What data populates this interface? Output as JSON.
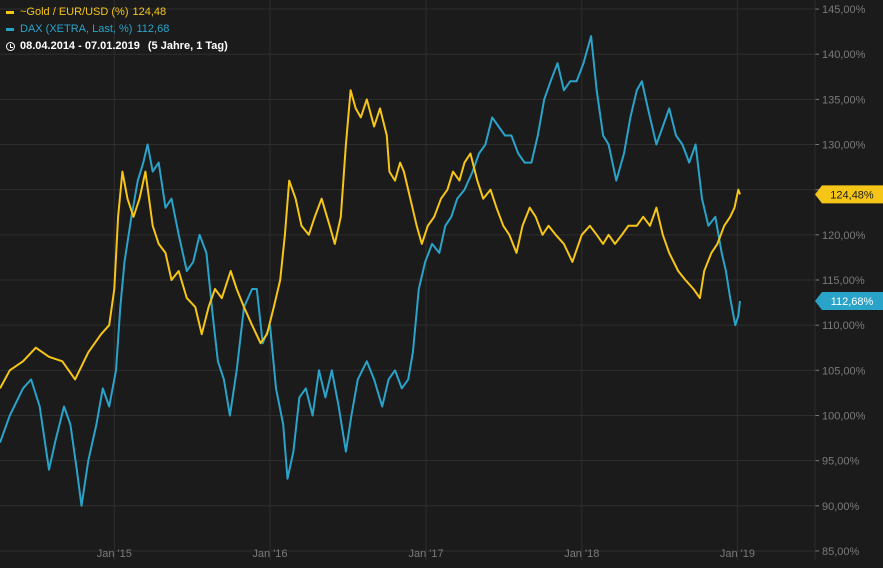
{
  "legend": {
    "gold_label": "~Gold / EUR/USD (%)",
    "gold_value": "124,48",
    "dax_label": "DAX (XETRA, Last, %)",
    "dax_value": "112,68",
    "date_range": "08.04.2014 - 07.01.2019",
    "period": "(5 Jahre, 1 Tag)"
  },
  "colors": {
    "background": "#1b1b1b",
    "grid": "#2e2e2e",
    "axis_text": "#7a7a7a",
    "gold": "#f5c518",
    "dax": "#2aa3c9"
  },
  "chart_data": {
    "type": "line",
    "x_range": [
      "2014-04-08",
      "2019-01-07"
    ],
    "ylim": [
      84,
      146
    ],
    "y_ticks": [
      85,
      90,
      95,
      100,
      105,
      110,
      115,
      120,
      125,
      130,
      135,
      140,
      145
    ],
    "y_tick_labels": [
      "85,00%",
      "90,00%",
      "95,00%",
      "100,00%",
      "105,00%",
      "110,00%",
      "115,00%",
      "120,00%",
      "125,00%",
      "130,00%",
      "135,00%",
      "140,00%",
      "145,00%"
    ],
    "x_ticks": [
      "2015-01-01",
      "2016-01-01",
      "2017-01-01",
      "2018-01-01",
      "2019-01-01"
    ],
    "x_tick_labels": [
      "Jan '15",
      "Jan '16",
      "Jan '17",
      "Jan '18",
      "Jan '19"
    ],
    "grid": true,
    "last_value_labels": [
      "124,48%",
      "112,68%"
    ],
    "series": [
      {
        "name": "~Gold / EUR/USD (%)",
        "color": "#f5c518",
        "points": [
          [
            "2014-04-08",
            103
          ],
          [
            "2014-05-01",
            105
          ],
          [
            "2014-06-01",
            106
          ],
          [
            "2014-07-01",
            107.5
          ],
          [
            "2014-08-01",
            106.5
          ],
          [
            "2014-09-01",
            106
          ],
          [
            "2014-10-01",
            104
          ],
          [
            "2014-11-01",
            107
          ],
          [
            "2014-12-01",
            109
          ],
          [
            "2014-12-20",
            110
          ],
          [
            "2015-01-01",
            114
          ],
          [
            "2015-01-10",
            122
          ],
          [
            "2015-01-20",
            127
          ],
          [
            "2015-02-01",
            124
          ],
          [
            "2015-02-15",
            122
          ],
          [
            "2015-03-01",
            124
          ],
          [
            "2015-03-15",
            127
          ],
          [
            "2015-04-01",
            121
          ],
          [
            "2015-04-15",
            119
          ],
          [
            "2015-05-01",
            118
          ],
          [
            "2015-05-15",
            115
          ],
          [
            "2015-06-01",
            116
          ],
          [
            "2015-06-20",
            113
          ],
          [
            "2015-07-10",
            112
          ],
          [
            "2015-07-25",
            109
          ],
          [
            "2015-08-10",
            112
          ],
          [
            "2015-08-25",
            114
          ],
          [
            "2015-09-10",
            113
          ],
          [
            "2015-10-01",
            116
          ],
          [
            "2015-10-15",
            114
          ],
          [
            "2015-11-01",
            112
          ],
          [
            "2015-11-20",
            110
          ],
          [
            "2015-12-10",
            108
          ],
          [
            "2015-12-25",
            109
          ],
          [
            "2016-01-10",
            112
          ],
          [
            "2016-01-25",
            115
          ],
          [
            "2016-02-05",
            120
          ],
          [
            "2016-02-15",
            126
          ],
          [
            "2016-03-01",
            124
          ],
          [
            "2016-03-15",
            121
          ],
          [
            "2016-04-01",
            120
          ],
          [
            "2016-04-15",
            122
          ],
          [
            "2016-05-01",
            124
          ],
          [
            "2016-05-20",
            121
          ],
          [
            "2016-06-01",
            119
          ],
          [
            "2016-06-15",
            122
          ],
          [
            "2016-06-27",
            130
          ],
          [
            "2016-07-08",
            136
          ],
          [
            "2016-07-20",
            134
          ],
          [
            "2016-08-01",
            133
          ],
          [
            "2016-08-15",
            135
          ],
          [
            "2016-09-01",
            132
          ],
          [
            "2016-09-15",
            134
          ],
          [
            "2016-10-01",
            131
          ],
          [
            "2016-10-07",
            127
          ],
          [
            "2016-10-20",
            126
          ],
          [
            "2016-11-01",
            128
          ],
          [
            "2016-11-10",
            127
          ],
          [
            "2016-11-25",
            124
          ],
          [
            "2016-12-10",
            121
          ],
          [
            "2016-12-22",
            119
          ],
          [
            "2017-01-05",
            121
          ],
          [
            "2017-01-20",
            122
          ],
          [
            "2017-02-05",
            124
          ],
          [
            "2017-02-20",
            125
          ],
          [
            "2017-03-05",
            127
          ],
          [
            "2017-03-20",
            126
          ],
          [
            "2017-04-01",
            128
          ],
          [
            "2017-04-15",
            129
          ],
          [
            "2017-05-01",
            126
          ],
          [
            "2017-05-15",
            124
          ],
          [
            "2017-06-01",
            125
          ],
          [
            "2017-06-15",
            123
          ],
          [
            "2017-07-01",
            121
          ],
          [
            "2017-07-15",
            120
          ],
          [
            "2017-08-01",
            118
          ],
          [
            "2017-08-15",
            121
          ],
          [
            "2017-09-01",
            123
          ],
          [
            "2017-09-15",
            122
          ],
          [
            "2017-10-01",
            120
          ],
          [
            "2017-10-15",
            121
          ],
          [
            "2017-11-01",
            120
          ],
          [
            "2017-11-20",
            119
          ],
          [
            "2017-12-10",
            117
          ],
          [
            "2018-01-01",
            120
          ],
          [
            "2018-01-20",
            121
          ],
          [
            "2018-02-05",
            120
          ],
          [
            "2018-02-20",
            119
          ],
          [
            "2018-03-05",
            120
          ],
          [
            "2018-03-20",
            119
          ],
          [
            "2018-04-05",
            120
          ],
          [
            "2018-04-20",
            121
          ],
          [
            "2018-05-10",
            121
          ],
          [
            "2018-05-25",
            122
          ],
          [
            "2018-06-10",
            121
          ],
          [
            "2018-06-25",
            123
          ],
          [
            "2018-07-10",
            120
          ],
          [
            "2018-07-25",
            118
          ],
          [
            "2018-08-15",
            116
          ],
          [
            "2018-09-01",
            115
          ],
          [
            "2018-09-20",
            114
          ],
          [
            "2018-10-05",
            113
          ],
          [
            "2018-10-15",
            116
          ],
          [
            "2018-11-01",
            118
          ],
          [
            "2018-11-15",
            119
          ],
          [
            "2018-12-01",
            121
          ],
          [
            "2018-12-15",
            122
          ],
          [
            "2018-12-25",
            123
          ],
          [
            "2019-01-03",
            125
          ],
          [
            "2019-01-07",
            124.48
          ]
        ]
      },
      {
        "name": "DAX (XETRA, Last, %)",
        "color": "#2aa3c9",
        "points": [
          [
            "2014-04-08",
            97
          ],
          [
            "2014-05-01",
            100
          ],
          [
            "2014-06-01",
            103
          ],
          [
            "2014-06-20",
            104
          ],
          [
            "2014-07-10",
            101
          ],
          [
            "2014-08-01",
            94
          ],
          [
            "2014-08-15",
            97
          ],
          [
            "2014-09-05",
            101
          ],
          [
            "2014-09-20",
            99
          ],
          [
            "2014-10-05",
            94
          ],
          [
            "2014-10-16",
            90
          ],
          [
            "2014-11-01",
            95
          ],
          [
            "2014-11-20",
            99
          ],
          [
            "2014-12-05",
            103
          ],
          [
            "2014-12-20",
            101
          ],
          [
            "2015-01-05",
            105
          ],
          [
            "2015-01-15",
            112
          ],
          [
            "2015-01-25",
            117
          ],
          [
            "2015-02-10",
            122
          ],
          [
            "2015-02-25",
            126
          ],
          [
            "2015-03-10",
            128
          ],
          [
            "2015-03-20",
            130
          ],
          [
            "2015-04-01",
            127
          ],
          [
            "2015-04-15",
            128
          ],
          [
            "2015-05-01",
            123
          ],
          [
            "2015-05-15",
            124
          ],
          [
            "2015-06-01",
            120
          ],
          [
            "2015-06-20",
            116
          ],
          [
            "2015-07-05",
            117
          ],
          [
            "2015-07-20",
            120
          ],
          [
            "2015-08-05",
            118
          ],
          [
            "2015-08-20",
            111
          ],
          [
            "2015-09-01",
            106
          ],
          [
            "2015-09-15",
            104
          ],
          [
            "2015-09-29",
            100
          ],
          [
            "2015-10-15",
            105
          ],
          [
            "2015-11-01",
            112
          ],
          [
            "2015-11-20",
            114
          ],
          [
            "2015-12-01",
            114
          ],
          [
            "2015-12-15",
            108
          ],
          [
            "2016-01-01",
            110
          ],
          [
            "2016-01-15",
            103
          ],
          [
            "2016-02-01",
            99
          ],
          [
            "2016-02-11",
            93
          ],
          [
            "2016-02-25",
            96
          ],
          [
            "2016-03-10",
            102
          ],
          [
            "2016-03-25",
            103
          ],
          [
            "2016-04-10",
            100
          ],
          [
            "2016-04-25",
            105
          ],
          [
            "2016-05-10",
            102
          ],
          [
            "2016-05-25",
            105
          ],
          [
            "2016-06-10",
            101
          ],
          [
            "2016-06-27",
            96
          ],
          [
            "2016-07-10",
            100
          ],
          [
            "2016-07-25",
            104
          ],
          [
            "2016-08-15",
            106
          ],
          [
            "2016-09-01",
            104
          ],
          [
            "2016-09-20",
            101
          ],
          [
            "2016-10-05",
            104
          ],
          [
            "2016-10-20",
            105
          ],
          [
            "2016-11-05",
            103
          ],
          [
            "2016-11-20",
            104
          ],
          [
            "2016-12-01",
            107
          ],
          [
            "2016-12-15",
            114
          ],
          [
            "2016-12-30",
            117
          ],
          [
            "2017-01-15",
            119
          ],
          [
            "2017-02-01",
            118
          ],
          [
            "2017-02-15",
            121
          ],
          [
            "2017-03-01",
            122
          ],
          [
            "2017-03-15",
            124
          ],
          [
            "2017-04-01",
            125
          ],
          [
            "2017-04-20",
            127
          ],
          [
            "2017-05-05",
            129
          ],
          [
            "2017-05-20",
            130
          ],
          [
            "2017-06-05",
            133
          ],
          [
            "2017-06-20",
            132
          ],
          [
            "2017-07-05",
            131
          ],
          [
            "2017-07-20",
            131
          ],
          [
            "2017-08-05",
            129
          ],
          [
            "2017-08-20",
            128
          ],
          [
            "2017-09-05",
            128
          ],
          [
            "2017-09-20",
            131
          ],
          [
            "2017-10-05",
            135
          ],
          [
            "2017-10-20",
            137
          ],
          [
            "2017-11-05",
            139
          ],
          [
            "2017-11-20",
            136
          ],
          [
            "2017-12-05",
            137
          ],
          [
            "2017-12-20",
            137
          ],
          [
            "2018-01-05",
            139
          ],
          [
            "2018-01-23",
            142
          ],
          [
            "2018-02-05",
            136
          ],
          [
            "2018-02-20",
            131
          ],
          [
            "2018-03-05",
            130
          ],
          [
            "2018-03-23",
            126
          ],
          [
            "2018-04-10",
            129
          ],
          [
            "2018-04-25",
            133
          ],
          [
            "2018-05-10",
            136
          ],
          [
            "2018-05-22",
            137
          ],
          [
            "2018-06-05",
            134
          ],
          [
            "2018-06-25",
            130
          ],
          [
            "2018-07-10",
            132
          ],
          [
            "2018-07-25",
            134
          ],
          [
            "2018-08-10",
            131
          ],
          [
            "2018-08-25",
            130
          ],
          [
            "2018-09-10",
            128
          ],
          [
            "2018-09-25",
            130
          ],
          [
            "2018-10-10",
            124
          ],
          [
            "2018-10-25",
            121
          ],
          [
            "2018-11-10",
            122
          ],
          [
            "2018-11-25",
            118
          ],
          [
            "2018-12-05",
            116
          ],
          [
            "2018-12-15",
            113
          ],
          [
            "2018-12-27",
            110
          ],
          [
            "2019-01-03",
            111
          ],
          [
            "2019-01-07",
            112.68
          ]
        ]
      }
    ]
  }
}
